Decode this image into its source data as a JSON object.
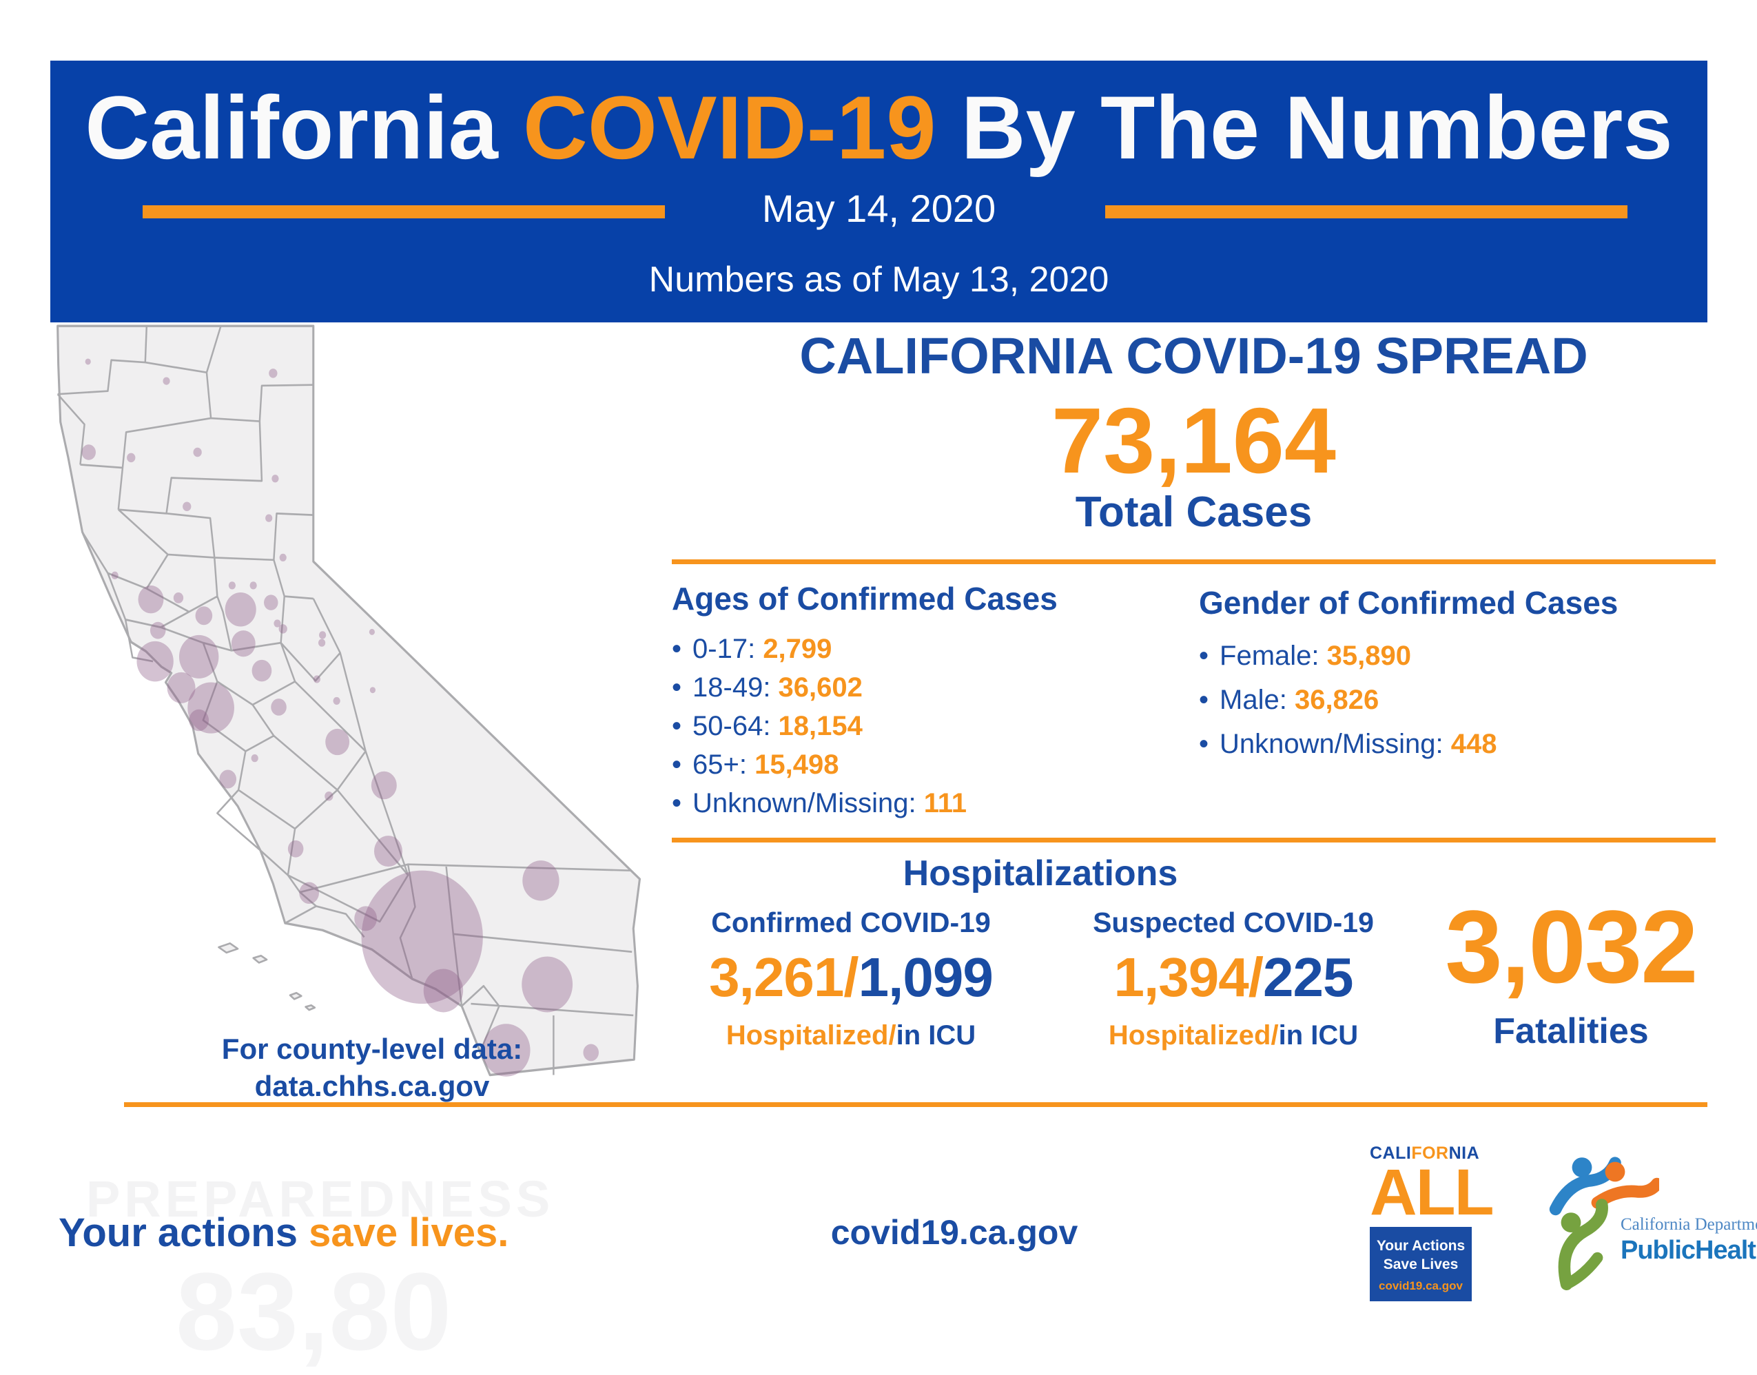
{
  "colors": {
    "banner_blue": "#0741A8",
    "text_blue": "#1A4CA3",
    "accent_orange": "#F7941D",
    "bubble_purple": "#8F5E88",
    "map_fill": "#F0EFF0",
    "map_stroke": "#ABABAE"
  },
  "banner": {
    "title_part1": "California ",
    "title_part2": "COVID-19",
    "title_part3": " By The Numbers",
    "date": "May 14, 2020",
    "subdate": "Numbers as of May 13, 2020"
  },
  "spread": {
    "title": "CALIFORNIA COVID-19 SPREAD",
    "total": "73,164",
    "total_label": "Total Cases"
  },
  "ages": {
    "title": "Ages of Confirmed Cases",
    "items": [
      {
        "bullet": "•",
        "label": "0-17: ",
        "value": "2,799"
      },
      {
        "bullet": "•",
        "label": "18-49: ",
        "value": "36,602"
      },
      {
        "bullet": "•",
        "label": "50-64: ",
        "value": "18,154"
      },
      {
        "bullet": "•",
        "label": "65+: ",
        "value": "15,498"
      },
      {
        "bullet": "•",
        "label": "Unknown/Missing: ",
        "value": "111"
      }
    ]
  },
  "gender": {
    "title": "Gender of Confirmed Cases",
    "items": [
      {
        "bullet": "•",
        "label": "Female: ",
        "value": "35,890"
      },
      {
        "bullet": "•",
        "label": "Male: ",
        "value": "36,826"
      },
      {
        "bullet": "•",
        "label": "Unknown/Missing: ",
        "value": "448"
      }
    ]
  },
  "hospitalizations": {
    "title": "Hospitalizations",
    "confirmed": {
      "label": "Confirmed COVID-19",
      "hospitalized": "3,261",
      "slash": "/",
      "icu": "1,099",
      "sub_orange": "Hospitalized/",
      "sub_blue": "in ICU"
    },
    "suspected": {
      "label": "Suspected COVID-19",
      "hospitalized": "1,394",
      "slash": "/",
      "icu": "225",
      "sub_orange": "Hospitalized/",
      "sub_blue": "in ICU"
    }
  },
  "fatalities": {
    "value": "3,032",
    "label": "Fatalities"
  },
  "county_note": {
    "line1": "For county-level data:",
    "line2": "data.chhs.ca.gov"
  },
  "footer": {
    "tagline_blue": "Your actions ",
    "tagline_orange": "save lives.",
    "site": "covid19.ca.gov",
    "watermark_top": "PREPAREDNESS",
    "watermark_bottom": "83,80"
  },
  "logos": {
    "ca_all": {
      "word_cali": "CALI",
      "word_for": "FOR",
      "word_nia": "NIA",
      "all": "ALL",
      "box_line1": "Your Actions",
      "box_line2": "Save Lives",
      "box_site": "covid19.ca.gov"
    },
    "cdph": {
      "line1": "California Department of",
      "line2": "PublicHealth"
    }
  },
  "map": {
    "description": "California county bubble map of confirmed cases",
    "bubble_color": "#8F5E88",
    "bubble_opacity": 0.38,
    "bubbles": [
      [
        68,
        56,
        4
      ],
      [
        179,
        81,
        5
      ],
      [
        330,
        71,
        6
      ],
      [
        69,
        173,
        10
      ],
      [
        129,
        180,
        6
      ],
      [
        223,
        173,
        6
      ],
      [
        333,
        207,
        5
      ],
      [
        208,
        243,
        6
      ],
      [
        324,
        258,
        5
      ],
      [
        272,
        345,
        5
      ],
      [
        302,
        345,
        5
      ],
      [
        344,
        309,
        5
      ],
      [
        106,
        332,
        5
      ],
      [
        336,
        394,
        5
      ],
      [
        400,
        409,
        5
      ],
      [
        470,
        405,
        4
      ],
      [
        392,
        466,
        5
      ],
      [
        420,
        494,
        5
      ],
      [
        471,
        480,
        4
      ],
      [
        304,
        568,
        5
      ],
      [
        409,
        617,
        6
      ],
      [
        157,
        363,
        18
      ],
      [
        196,
        361,
        7
      ],
      [
        232,
        384,
        12
      ],
      [
        284,
        376,
        22
      ],
      [
        327,
        367,
        10
      ],
      [
        344,
        401,
        6
      ],
      [
        399,
        419,
        5
      ],
      [
        167,
        403,
        11
      ],
      [
        163,
        443,
        26
      ],
      [
        225,
        437,
        28
      ],
      [
        288,
        420,
        17
      ],
      [
        200,
        477,
        20
      ],
      [
        242,
        503,
        33
      ],
      [
        225,
        519,
        14
      ],
      [
        314,
        455,
        14
      ],
      [
        338,
        502,
        11
      ],
      [
        266,
        595,
        12
      ],
      [
        421,
        547,
        17
      ],
      [
        487,
        603,
        18
      ],
      [
        362,
        685,
        11
      ],
      [
        493,
        688,
        20
      ],
      [
        381,
        742,
        14
      ],
      [
        461,
        775,
        16
      ],
      [
        541,
        799,
        86
      ],
      [
        709,
        726,
        26
      ],
      [
        571,
        868,
        28
      ],
      [
        718,
        860,
        36
      ],
      [
        660,
        945,
        34
      ],
      [
        780,
        948,
        11
      ]
    ]
  }
}
